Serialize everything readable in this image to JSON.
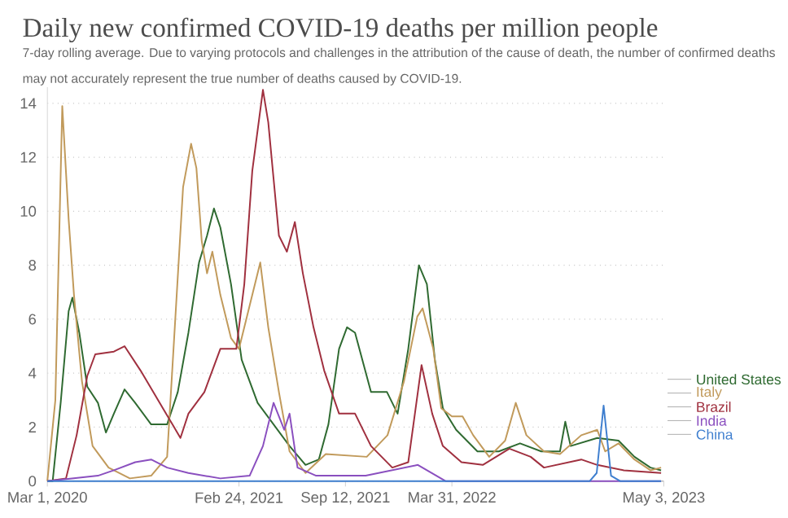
{
  "chart_data": {
    "type": "line",
    "title": "Daily new confirmed COVID-19 deaths per million people",
    "subtitle": "7-day rolling average. Due to varying protocols and challenges in the attribution of the cause of death, the number of confirmed deaths may not accurately represent the true number of deaths caused by COVID-19.",
    "xlim": [
      "2020-03-01",
      "2023-05-03"
    ],
    "xticks": [
      {
        "value": "2020-03-01",
        "label": "Mar 1, 2020"
      },
      {
        "value": "2021-02-24",
        "label": "Feb 24, 2021"
      },
      {
        "value": "2021-09-12",
        "label": "Sep 12, 2021"
      },
      {
        "value": "2022-03-31",
        "label": "Mar 31, 2022"
      },
      {
        "value": "2023-05-03",
        "label": "May 3, 2023"
      }
    ],
    "ylim": [
      0,
      14.6
    ],
    "yticks": [
      0,
      2,
      4,
      6,
      8,
      10,
      12,
      14
    ],
    "grid": "y",
    "legend": "right",
    "series": [
      {
        "name": "United States",
        "color": "#2f6a31",
        "x": [
          "2020-03-01",
          "2020-03-11",
          "2020-03-26",
          "2020-04-10",
          "2020-04-17",
          "2020-04-30",
          "2020-05-15",
          "2020-06-04",
          "2020-06-19",
          "2020-07-04",
          "2020-07-24",
          "2020-08-13",
          "2020-09-12",
          "2020-10-12",
          "2020-11-01",
          "2020-11-21",
          "2020-12-11",
          "2020-12-26",
          "2021-01-08",
          "2021-01-20",
          "2021-02-09",
          "2021-03-01",
          "2021-03-31",
          "2021-04-30",
          "2021-05-30",
          "2021-06-29",
          "2021-07-24",
          "2021-08-11",
          "2021-08-31",
          "2021-09-15",
          "2021-09-30",
          "2021-10-30",
          "2021-11-29",
          "2021-12-19",
          "2022-01-08",
          "2022-01-28",
          "2022-02-12",
          "2022-02-27",
          "2022-03-14",
          "2022-04-08",
          "2022-05-18",
          "2022-06-27",
          "2022-08-06",
          "2022-09-15",
          "2022-10-20",
          "2022-10-30",
          "2022-11-09",
          "2022-12-29",
          "2023-02-07",
          "2023-03-09",
          "2023-04-08",
          "2023-04-28"
        ],
        "values": [
          0.0,
          0.0,
          2.9,
          6.3,
          6.8,
          5.5,
          3.5,
          2.9,
          1.8,
          2.5,
          3.4,
          2.9,
          2.1,
          2.1,
          3.3,
          5.5,
          8.1,
          9.1,
          10.1,
          9.4,
          7.3,
          4.5,
          2.9,
          2.1,
          1.3,
          0.6,
          0.8,
          2.1,
          4.9,
          5.7,
          5.5,
          3.3,
          3.3,
          2.5,
          4.9,
          8.0,
          7.3,
          4.5,
          2.7,
          1.9,
          1.1,
          1.1,
          1.4,
          1.1,
          1.1,
          2.2,
          1.3,
          1.6,
          1.5,
          0.9,
          0.5,
          0.4
        ]
      },
      {
        "name": "Italy",
        "color": "#c19a5b",
        "x": [
          "2020-03-01",
          "2020-03-16",
          "2020-03-29",
          "2020-04-10",
          "2020-04-20",
          "2020-05-05",
          "2020-05-25",
          "2020-06-24",
          "2020-08-03",
          "2020-09-12",
          "2020-10-12",
          "2020-10-27",
          "2020-11-11",
          "2020-11-26",
          "2020-12-06",
          "2020-12-16",
          "2020-12-26",
          "2021-01-05",
          "2021-01-20",
          "2021-02-09",
          "2021-02-24",
          "2021-03-16",
          "2021-04-05",
          "2021-04-20",
          "2021-05-10",
          "2021-05-30",
          "2021-06-29",
          "2021-08-06",
          "2021-10-22",
          "2021-11-30",
          "2021-12-31",
          "2022-01-25",
          "2022-02-04",
          "2022-02-24",
          "2022-03-11",
          "2022-03-31",
          "2022-04-20",
          "2022-05-10",
          "2022-06-09",
          "2022-07-09",
          "2022-07-29",
          "2022-08-18",
          "2022-09-20",
          "2022-10-20",
          "2022-11-29",
          "2022-12-29",
          "2023-01-13",
          "2023-02-07",
          "2023-03-09",
          "2023-04-08",
          "2023-04-28"
        ],
        "values": [
          0.0,
          3.0,
          13.9,
          9.7,
          6.9,
          3.7,
          1.3,
          0.5,
          0.1,
          0.2,
          0.9,
          5.9,
          10.9,
          12.5,
          11.6,
          8.9,
          7.7,
          8.5,
          6.9,
          5.3,
          4.9,
          6.5,
          8.1,
          5.7,
          3.3,
          1.1,
          0.3,
          1.0,
          0.9,
          1.7,
          3.7,
          6.1,
          6.4,
          4.9,
          2.7,
          2.4,
          2.4,
          1.7,
          0.9,
          1.5,
          2.9,
          1.7,
          1.1,
          1.0,
          1.7,
          1.9,
          1.1,
          1.4,
          0.8,
          0.4,
          0.5
        ]
      },
      {
        "name": "Brazil",
        "color": "#a0303f",
        "x": [
          "2020-03-01",
          "2020-04-05",
          "2020-04-25",
          "2020-05-15",
          "2020-05-30",
          "2020-07-04",
          "2020-07-24",
          "2020-08-23",
          "2020-09-22",
          "2020-10-22",
          "2020-11-06",
          "2020-11-21",
          "2020-12-21",
          "2021-01-20",
          "2021-02-19",
          "2021-03-06",
          "2021-03-21",
          "2021-04-10",
          "2021-04-20",
          "2021-05-10",
          "2021-05-25",
          "2021-06-09",
          "2021-06-24",
          "2021-07-14",
          "2021-08-03",
          "2021-08-31",
          "2021-09-30",
          "2021-10-30",
          "2021-12-09",
          "2022-01-08",
          "2022-02-02",
          "2022-02-22",
          "2022-03-14",
          "2022-04-18",
          "2022-05-28",
          "2022-07-17",
          "2022-08-26",
          "2022-09-20",
          "2022-11-29",
          "2022-12-29",
          "2023-02-17",
          "2023-04-28"
        ],
        "values": [
          0.0,
          0.1,
          1.7,
          3.9,
          4.7,
          4.8,
          5.0,
          4.1,
          3.1,
          2.1,
          1.6,
          2.5,
          3.3,
          4.9,
          4.9,
          7.3,
          11.5,
          14.5,
          13.3,
          9.1,
          8.5,
          9.6,
          7.7,
          5.7,
          4.1,
          2.5,
          2.5,
          1.3,
          0.5,
          0.7,
          4.3,
          2.5,
          1.3,
          0.7,
          0.6,
          1.2,
          0.9,
          0.5,
          0.8,
          0.6,
          0.4,
          0.3
        ]
      },
      {
        "name": "India",
        "color": "#8a4fbf",
        "x": [
          "2020-03-01",
          "2020-06-04",
          "2020-07-04",
          "2020-08-13",
          "2020-09-12",
          "2020-10-12",
          "2020-11-21",
          "2021-01-20",
          "2021-03-16",
          "2021-04-10",
          "2021-04-30",
          "2021-05-20",
          "2021-05-30",
          "2021-06-14",
          "2021-07-19",
          "2021-10-20",
          "2022-01-26",
          "2022-03-19",
          "2022-11-09",
          "2023-04-28"
        ],
        "values": [
          0.0,
          0.2,
          0.4,
          0.7,
          0.8,
          0.5,
          0.3,
          0.1,
          0.2,
          1.3,
          2.9,
          1.9,
          2.5,
          0.5,
          0.2,
          0.2,
          0.6,
          0.0,
          0.0,
          0.0
        ]
      },
      {
        "name": "China",
        "color": "#3f7fcf",
        "x": [
          "2020-03-01",
          "2022-12-15",
          "2022-12-28",
          "2023-01-10",
          "2023-01-24",
          "2023-02-10",
          "2023-04-28"
        ],
        "values": [
          0.0,
          0.0,
          0.3,
          2.8,
          0.2,
          0.0,
          0.0
        ]
      }
    ]
  }
}
